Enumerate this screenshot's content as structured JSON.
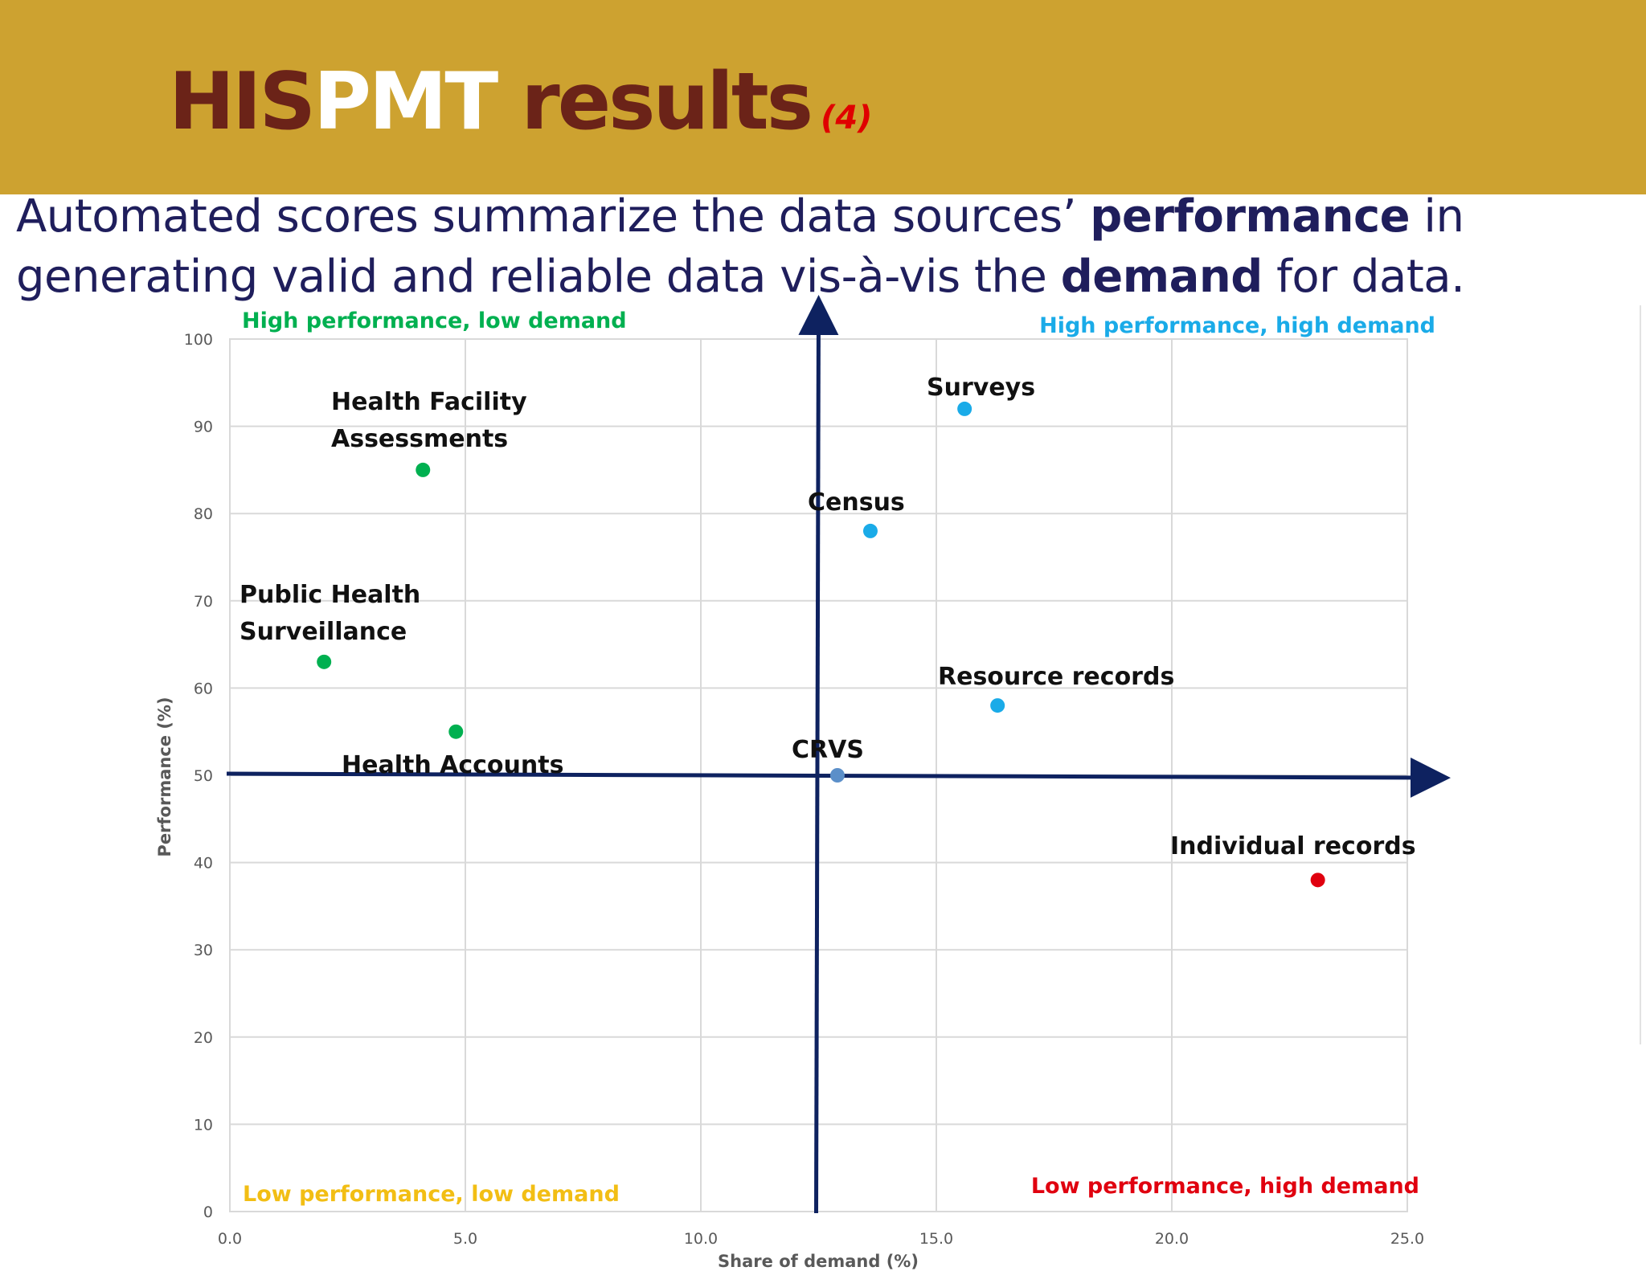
{
  "slide": {
    "title_part1": "HIS",
    "title_part2": "PMT",
    "title_part3": " results",
    "title_number": "(4)",
    "subtitle": {
      "pre1": "Automated scores summarize the data sources’ ",
      "bold1": "performance",
      "mid": " in generating valid and reliable data vis-à-vis the ",
      "bold2": "demand",
      "post": " for data."
    }
  },
  "colors": {
    "header_bg": "#CDA230",
    "title_dark": "#6B2318",
    "title_light": "#FFFFFF",
    "subtitle_text": "#1F1E5C",
    "axis_arrow": "#0E2260",
    "green": "#00B050",
    "blue": "#1AABE8",
    "crvs_blue": "#5B8FC9",
    "red": "#E0000F",
    "yellow": "#F2BE14"
  },
  "chart_data": {
    "type": "scatter",
    "xlabel": "Share of demand (%)",
    "ylabel": "Performance (%)",
    "xlim": [
      0,
      25
    ],
    "ylim": [
      0,
      100
    ],
    "x_ticks": [
      "0.0",
      "5.0",
      "10.0",
      "15.0",
      "20.0",
      "25.0"
    ],
    "y_ticks": [
      "0",
      "10",
      "20",
      "30",
      "40",
      "50",
      "60",
      "70",
      "80",
      "90",
      "100"
    ],
    "grid": true,
    "divider_x": 12.5,
    "divider_y": 50,
    "quadrants": [
      {
        "label": "High performance, low demand",
        "color": "#00B050"
      },
      {
        "label": "High performance, high demand",
        "color": "#1AABE8"
      },
      {
        "label": "Low performance, low demand",
        "color": "#F2BE14"
      },
      {
        "label": "Low performance, high demand",
        "color": "#E0000F"
      }
    ],
    "points": [
      {
        "label": "Health Facility Assessments",
        "lines": [
          "Health Facility",
          "Assessments"
        ],
        "x": 4.1,
        "y": 85,
        "color": "#00B050"
      },
      {
        "label": "Public Health Surveillance",
        "lines": [
          "Public Health",
          "Surveillance"
        ],
        "x": 2.0,
        "y": 63,
        "color": "#00B050"
      },
      {
        "label": "Health Accounts",
        "lines": [
          "Health Accounts"
        ],
        "x": 4.8,
        "y": 55,
        "color": "#00B050"
      },
      {
        "label": "Surveys",
        "lines": [
          "Surveys"
        ],
        "x": 15.6,
        "y": 92,
        "color": "#1AABE8"
      },
      {
        "label": "Census",
        "lines": [
          "Census"
        ],
        "x": 13.6,
        "y": 78,
        "color": "#1AABE8"
      },
      {
        "label": "Resource records",
        "lines": [
          "Resource records"
        ],
        "x": 16.3,
        "y": 58,
        "color": "#1AABE8"
      },
      {
        "label": "CRVS",
        "lines": [
          "CRVS"
        ],
        "x": 12.9,
        "y": 50,
        "color": "#5B8FC9"
      },
      {
        "label": "Individual records",
        "lines": [
          "Individual records"
        ],
        "x": 23.1,
        "y": 38,
        "color": "#E0000F"
      }
    ]
  }
}
